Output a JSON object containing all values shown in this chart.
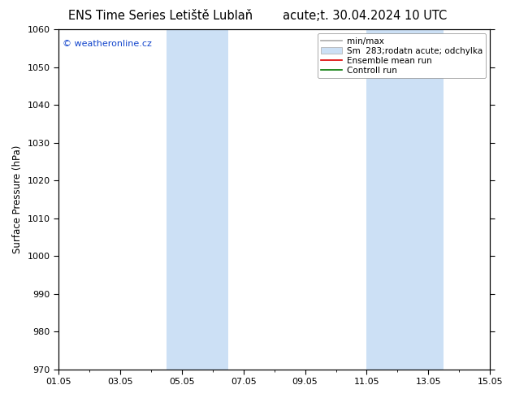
{
  "title_left": "ENS Time Series Letiště Lublaň",
  "title_right": "acute;t. 30.04.2024 10 UTC",
  "ylabel": "Surface Pressure (hPa)",
  "ylim": [
    970,
    1060
  ],
  "yticks": [
    970,
    980,
    990,
    1000,
    1010,
    1020,
    1030,
    1040,
    1050,
    1060
  ],
  "x_start_day": 0,
  "x_end_day": 14,
  "xtick_labels": [
    "01.05",
    "03.05",
    "05.05",
    "07.05",
    "09.05",
    "11.05",
    "13.05",
    "15.05"
  ],
  "xtick_positions_days": [
    0,
    2,
    4,
    6,
    8,
    10,
    12,
    14
  ],
  "shaded_bands": [
    {
      "x0_day": 3.5,
      "x1_day": 5.5
    },
    {
      "x0_day": 10.0,
      "x1_day": 12.5
    }
  ],
  "shade_color": "#cce0f5",
  "watermark": "© weatheronline.cz",
  "watermark_color": "#1144cc",
  "legend_line1_label": "min/max",
  "legend_line1_color": "#aaaaaa",
  "legend_line2_label": "Sm  283;rodatn acute; odchylka",
  "legend_line2_color": "#cce0f5",
  "legend_line3_label": "Ensemble mean run",
  "legend_line3_color": "#dd0000",
  "legend_line4_label": "Controll run",
  "legend_line4_color": "#007700",
  "background_color": "#ffffff",
  "plot_bg_color": "#ffffff",
  "title_fontsize": 10.5,
  "axis_label_fontsize": 8.5,
  "tick_fontsize": 8,
  "legend_fontsize": 7.5,
  "watermark_fontsize": 8
}
